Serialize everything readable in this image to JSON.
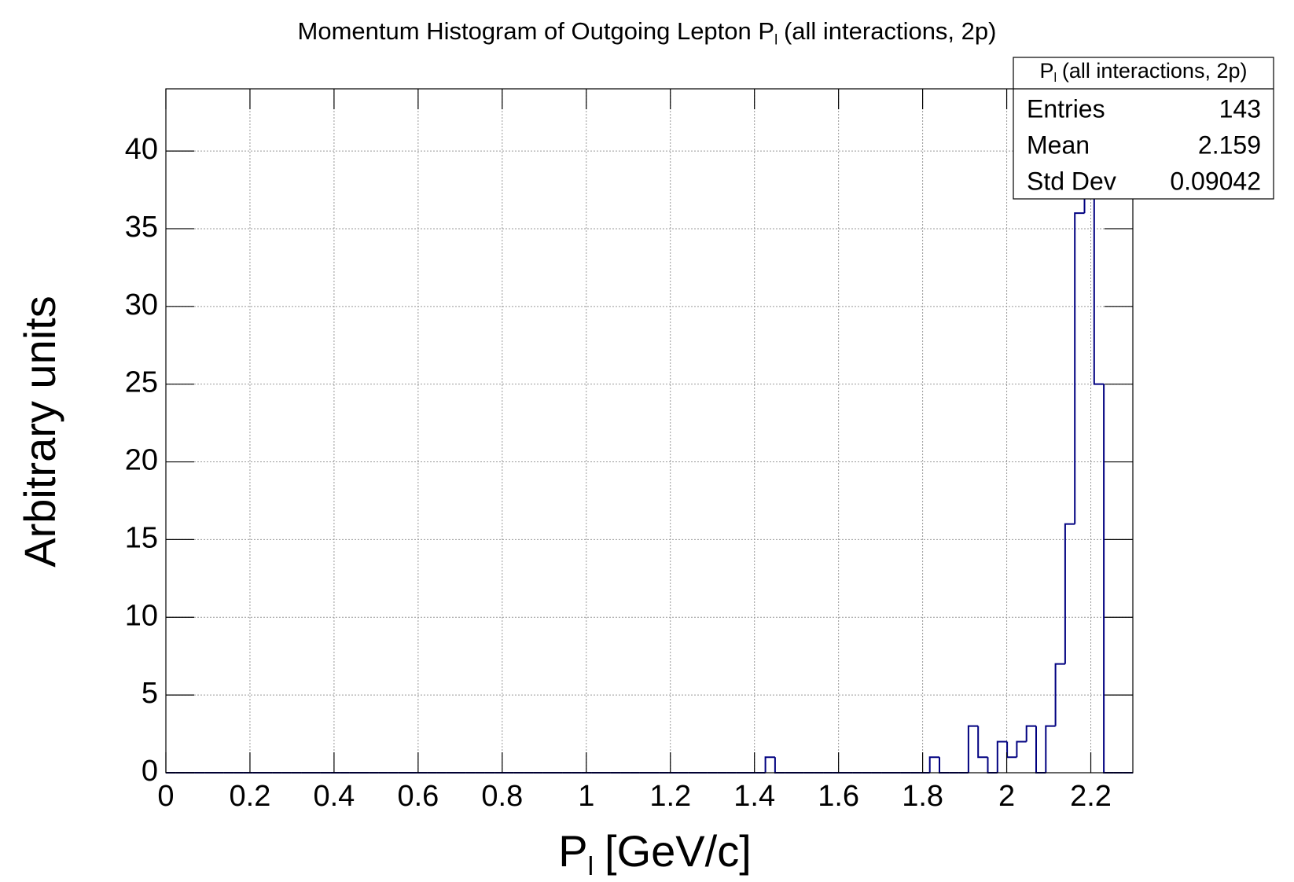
{
  "chart_data": {
    "type": "histogram",
    "title": [
      "Momentum Histogram of Outgoing Lepton P",
      "l",
      "(all interactions, 2p)"
    ],
    "x_label": [
      "P",
      "l",
      "[GeV/c]"
    ],
    "y_label": "Arbitrary units",
    "color": "#000080",
    "grid": true,
    "bins": [
      0,
      0.023,
      0.046,
      0.069,
      0.092,
      0.115,
      0.138,
      0.161,
      0.184,
      0.207,
      0.23,
      0.253,
      0.276,
      0.299,
      0.322,
      0.345,
      0.368,
      0.391,
      0.414,
      0.437,
      0.46,
      0.483,
      0.506,
      0.529,
      0.552,
      0.575,
      0.598,
      0.621,
      0.644,
      0.667,
      0.69,
      0.713,
      0.736,
      0.759,
      0.782,
      0.805,
      0.828,
      0.851,
      0.874,
      0.897,
      0.92,
      0.943,
      0.966,
      0.989,
      1.012,
      1.035,
      1.058,
      1.081,
      1.104,
      1.127,
      1.15,
      1.173,
      1.196,
      1.219,
      1.242,
      1.265,
      1.288,
      1.311,
      1.334,
      1.357,
      1.38,
      1.403,
      1.426,
      1.449,
      1.472,
      1.495,
      1.518,
      1.541,
      1.564,
      1.587,
      1.61,
      1.633,
      1.656,
      1.679,
      1.702,
      1.725,
      1.748,
      1.771,
      1.794,
      1.817,
      1.84,
      1.863,
      1.886,
      1.909,
      1.932,
      1.955,
      1.978,
      2.001,
      2.024,
      2.047,
      2.07,
      2.093,
      2.116,
      2.139,
      2.162,
      2.185,
      2.208,
      2.231,
      2.254,
      2.277,
      2.3
    ],
    "values": [
      0,
      0,
      0,
      0,
      0,
      0,
      0,
      0,
      0,
      0,
      0,
      0,
      0,
      0,
      0,
      0,
      0,
      0,
      0,
      0,
      0,
      0,
      0,
      0,
      0,
      0,
      0,
      0,
      0,
      0,
      0,
      0,
      0,
      0,
      0,
      0,
      0,
      0,
      0,
      0,
      0,
      0,
      0,
      0,
      0,
      0,
      0,
      0,
      0,
      0,
      0,
      0,
      0,
      0,
      0,
      0,
      0,
      0,
      0,
      0,
      0,
      0,
      1,
      0,
      0,
      0,
      0,
      0,
      0,
      0,
      0,
      0,
      0,
      0,
      0,
      0,
      0,
      0,
      0,
      1,
      0,
      0,
      0,
      3,
      1,
      0,
      2,
      1,
      2,
      3,
      0,
      3,
      7,
      16,
      36,
      42,
      25,
      0,
      0,
      0
    ],
    "xlim": [
      0,
      2.3
    ],
    "ylim": [
      0,
      44
    ],
    "xticks": [
      0,
      0.2,
      0.4,
      0.6,
      0.8,
      1,
      1.2,
      1.4,
      1.6,
      1.8,
      2,
      2.2
    ],
    "yticks": [
      0,
      5,
      10,
      15,
      20,
      25,
      30,
      35,
      40
    ],
    "stats": {
      "title": [
        "P",
        "l",
        "(all interactions, 2p)"
      ],
      "rows": [
        [
          "Entries",
          143
        ],
        [
          "Mean",
          2.159
        ],
        [
          "Std Dev",
          0.09042
        ]
      ]
    }
  }
}
